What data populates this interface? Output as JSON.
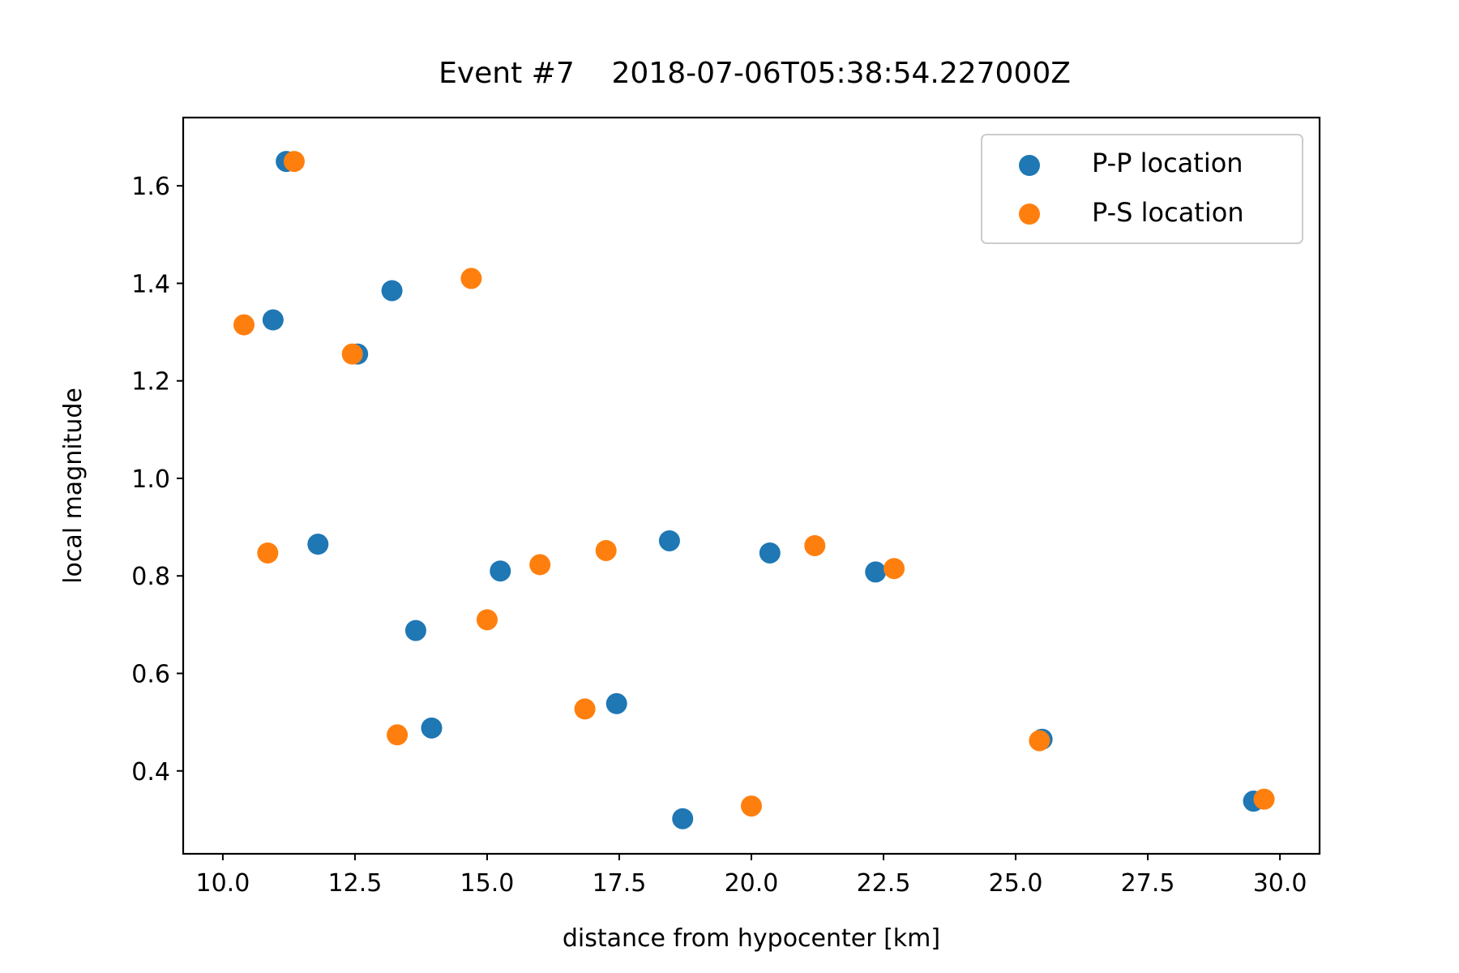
{
  "chart_data": {
    "type": "scatter",
    "title": "Event #7    2018-07-06T05:38:54.227000Z",
    "xlabel": "distance from hypocenter [km]",
    "ylabel": "local magnitude",
    "xlim": [
      9.25,
      30.75
    ],
    "ylim": [
      0.23,
      1.74
    ],
    "x_ticks": [
      "10.0",
      "12.5",
      "15.0",
      "17.5",
      "20.0",
      "22.5",
      "25.0",
      "27.5",
      "30.0"
    ],
    "y_ticks": [
      "0.4",
      "0.6",
      "0.8",
      "1.0",
      "1.2",
      "1.4",
      "1.6"
    ],
    "grid": false,
    "legend_position": "upper right",
    "series": [
      {
        "name": "P-P location",
        "color": "#1f77b4",
        "points": [
          {
            "x": 11.2,
            "y": 1.65
          },
          {
            "x": 10.95,
            "y": 1.325
          },
          {
            "x": 13.2,
            "y": 1.385
          },
          {
            "x": 12.55,
            "y": 1.255
          },
          {
            "x": 11.8,
            "y": 0.865
          },
          {
            "x": 15.25,
            "y": 0.81
          },
          {
            "x": 13.65,
            "y": 0.688
          },
          {
            "x": 13.95,
            "y": 0.488
          },
          {
            "x": 17.45,
            "y": 0.538
          },
          {
            "x": 18.45,
            "y": 0.872
          },
          {
            "x": 18.7,
            "y": 0.302
          },
          {
            "x": 20.35,
            "y": 0.847
          },
          {
            "x": 22.35,
            "y": 0.808
          },
          {
            "x": 25.5,
            "y": 0.465
          },
          {
            "x": 29.5,
            "y": 0.338
          }
        ]
      },
      {
        "name": "P-S location",
        "color": "#ff7f0e",
        "points": [
          {
            "x": 11.35,
            "y": 1.65
          },
          {
            "x": 10.4,
            "y": 1.315
          },
          {
            "x": 14.7,
            "y": 1.41
          },
          {
            "x": 12.45,
            "y": 1.255
          },
          {
            "x": 10.85,
            "y": 0.847
          },
          {
            "x": 16.0,
            "y": 0.823
          },
          {
            "x": 17.25,
            "y": 0.852
          },
          {
            "x": 15.0,
            "y": 0.71
          },
          {
            "x": 13.3,
            "y": 0.474
          },
          {
            "x": 16.85,
            "y": 0.527
          },
          {
            "x": 20.0,
            "y": 0.328
          },
          {
            "x": 21.2,
            "y": 0.862
          },
          {
            "x": 22.7,
            "y": 0.815
          },
          {
            "x": 25.45,
            "y": 0.462
          },
          {
            "x": 29.7,
            "y": 0.342
          }
        ]
      }
    ]
  }
}
